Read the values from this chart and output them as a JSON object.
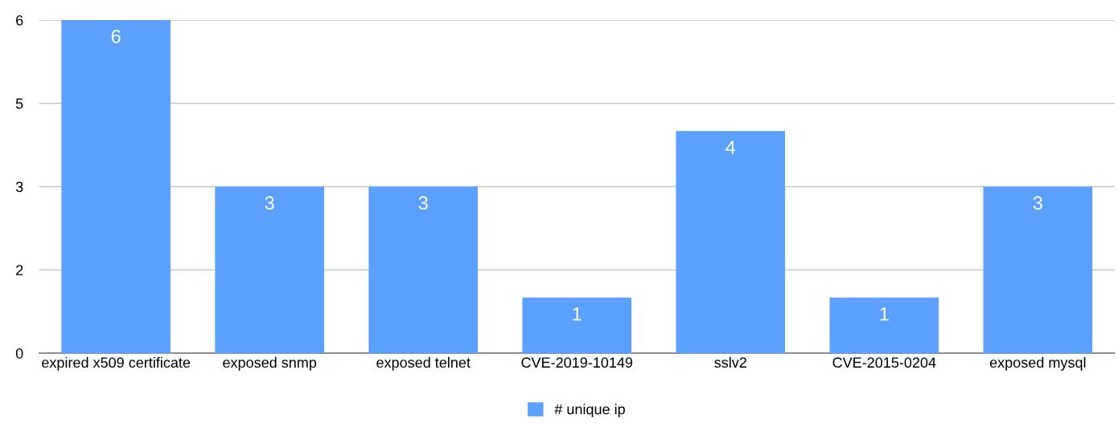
{
  "chart_data": {
    "type": "bar",
    "categories": [
      "expired x509 certificate",
      "exposed snmp",
      "exposed telnet",
      "CVE-2019-10149",
      "sslv2",
      "CVE-2015-0204",
      "exposed mysql"
    ],
    "series": [
      {
        "name": "# unique ip",
        "color": "#5ba0fc",
        "values": [
          6,
          3,
          3,
          1,
          4,
          1,
          3
        ]
      }
    ],
    "ylim": [
      0,
      6
    ],
    "yticks": [
      0,
      {
        "value": 1.5,
        "label": "2"
      },
      3,
      {
        "value": 4.5,
        "label": "5"
      },
      6
    ],
    "grid": "y",
    "legend": "bottom",
    "data_labels": true
  }
}
